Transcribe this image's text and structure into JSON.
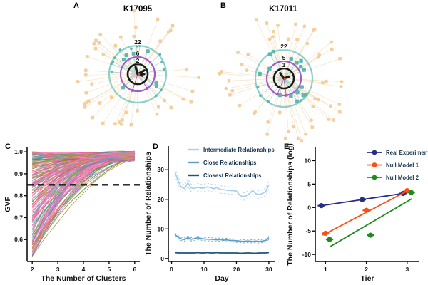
{
  "figure": {
    "background": "#ffffff"
  },
  "colors": {
    "axis": "#000000",
    "legend_text": "#14324F",
    "ref_line": "#141414",
    "network": {
      "outer_node": "#F2CF9D",
      "outer_edge": "#F6DFBC",
      "teal_node": "#5FB8B0",
      "teal_edge": "#9AD5CE",
      "purple_node": "#A35BC5",
      "gray_spoke": "#CDCDCD",
      "black_spoke": "#1A1A1A",
      "center_dot": "#E8502A"
    }
  },
  "panels": {
    "A": {
      "label": "A",
      "title": "K17095",
      "rings": [
        {
          "label": "22",
          "radius": 40,
          "color": "#8BD0C8"
        },
        {
          "label": "6",
          "radius": 24,
          "color": "#A35BC5"
        },
        {
          "label": "2",
          "radius": 14,
          "color": "#1A1A1A"
        }
      ],
      "network": {
        "seed": 11,
        "outer": {
          "count": 46,
          "shape": "square",
          "rmin": 47,
          "rmax": 90
        },
        "teal": [
          {
            "count": 13,
            "shape": "circle",
            "rmin": 36,
            "rmax": 42,
            "size": 2.3
          },
          {
            "count": 7,
            "shape": "square",
            "rmin": 26,
            "rmax": 36,
            "size": 3.8
          }
        ],
        "purple_count": 2,
        "gray_spokes": 6,
        "black_spokes": 4
      }
    },
    "B": {
      "label": "B",
      "title": "K17011",
      "rings": [
        {
          "label": "22",
          "radius": 40,
          "color": "#8BD0C8"
        },
        {
          "label": "5",
          "radius": 24,
          "color": "#A35BC5"
        },
        {
          "label": "1",
          "radius": 14,
          "color": "#1A1A1A"
        }
      ],
      "network": {
        "seed": 23,
        "outer": {
          "count": 54,
          "shape": "mix",
          "rmin": 47,
          "rmax": 92
        },
        "teal": [
          {
            "count": 16,
            "shape": "square",
            "rmin": 24,
            "rmax": 41,
            "size": 4.2
          },
          {
            "count": 4,
            "shape": "circle",
            "rmin": 37,
            "rmax": 42,
            "size": 2.3
          }
        ],
        "purple_count": 2,
        "gray_spokes": 6,
        "black_spokes": 3
      }
    },
    "C": {
      "label": "C"
    },
    "D": {
      "label": "D"
    },
    "E": {
      "label": "E"
    }
  },
  "chart_data": [
    {
      "id": "C",
      "type": "line",
      "title": "",
      "xlabel": "The Number of Clusters",
      "ylabel": "GVF",
      "xlim": [
        1.8,
        6.2
      ],
      "ylim": [
        0.5,
        1.02
      ],
      "x_ticks": [
        2,
        3,
        4,
        5,
        6
      ],
      "y_ticks": [
        0.6,
        0.7,
        0.8,
        0.9,
        1.0
      ],
      "grid": false,
      "reference_line": {
        "y": 0.85,
        "style": "dashed",
        "color": "#141414",
        "width": 2.3
      },
      "ensemble": {
        "description": "~200 GVF curves (one per unit) rising from values 0.53-0.99 at 2 clusters and converging to 0.96-1.0 at 6 clusters",
        "n_lines": 210,
        "x": [
          2,
          3,
          4,
          5,
          6
        ],
        "start_range": [
          0.52,
          0.99
        ],
        "end_range": [
          0.96,
          1.0
        ],
        "seed": 42,
        "pink_weight": 0.5,
        "palette": [
          "#F06EB1",
          "#E85A9F",
          "#F78FC0",
          "#4DAF4A",
          "#7FBF4D",
          "#1B9E77",
          "#66A5D8",
          "#7570B3",
          "#9C6BC9",
          "#B8912C",
          "#A6761D",
          "#D9822B",
          "#999999",
          "#5AB4AC",
          "#C2559F"
        ]
      }
    },
    {
      "id": "D",
      "type": "line",
      "title": "",
      "xlabel": "Day",
      "ylabel": "The Number of Relationships",
      "xlim": [
        -1,
        32
      ],
      "ylim": [
        -1,
        38
      ],
      "x_ticks": [
        0,
        10,
        20,
        30
      ],
      "y_ticks": [
        0,
        10,
        20,
        30
      ],
      "grid": false,
      "legend_position": "top-inside",
      "x": [
        1,
        2,
        3,
        4,
        5,
        6,
        7,
        8,
        9,
        10,
        11,
        12,
        13,
        14,
        15,
        16,
        17,
        18,
        19,
        20,
        21,
        22,
        23,
        24,
        25,
        26,
        27,
        28,
        29,
        30
      ],
      "series": [
        {
          "name": "Closest Relationships",
          "color": "#1F5377",
          "band": 0.15,
          "values": [
            2.0,
            1.9,
            1.9,
            1.9,
            1.9,
            1.9,
            1.9,
            2.0,
            1.9,
            1.9,
            2.0,
            1.9,
            1.9,
            2.0,
            1.9,
            1.9,
            1.9,
            1.9,
            1.9,
            1.9,
            1.8,
            1.8,
            1.9,
            1.9,
            1.8,
            1.8,
            1.9,
            1.9,
            1.9,
            2.0
          ]
        },
        {
          "name": "Close Relationships",
          "color": "#5B9EC9",
          "band": 0.55,
          "values": [
            8.1,
            7.2,
            6.6,
            6.4,
            7.1,
            6.5,
            6.7,
            7.0,
            6.8,
            6.6,
            6.5,
            6.5,
            6.4,
            6.3,
            6.4,
            6.2,
            6.3,
            6.1,
            6.1,
            6.0,
            5.9,
            5.8,
            5.9,
            5.9,
            5.8,
            5.9,
            5.8,
            5.9,
            6.1,
            7.0
          ]
        },
        {
          "name": "Intermediate Relationships",
          "color": "#A9CFE5",
          "band": 1.25,
          "values": [
            29.3,
            26.3,
            24.1,
            23.6,
            25.6,
            23.9,
            23.7,
            24.1,
            23.8,
            23.9,
            24.2,
            24.0,
            23.6,
            24.0,
            23.3,
            23.3,
            23.1,
            23.0,
            22.9,
            22.8,
            21.4,
            20.9,
            21.2,
            21.9,
            23.0,
            21.9,
            21.6,
            22.0,
            22.6,
            24.9
          ]
        }
      ]
    },
    {
      "id": "E",
      "type": "scatter",
      "title": "",
      "xlabel": "Tier",
      "ylabel": "The Number of Relationships (log)",
      "xlim": [
        0.75,
        3.3
      ],
      "ylim": [
        -11.5,
        12.8
      ],
      "x_ticks": [
        1,
        2,
        3
      ],
      "y_ticks": [
        -10,
        -5,
        0,
        5,
        10
      ],
      "grid": false,
      "legend_position": "top-right-inside",
      "series": [
        {
          "name": "Real Experiment",
          "color": "#252E87",
          "x": [
            0.9,
            1.9,
            2.9
          ],
          "y": [
            0.4,
            1.7,
            3.0
          ],
          "xerr": 0.09,
          "line": {
            "type": "connect"
          }
        },
        {
          "name": "Null Model 1",
          "color": "#FC4E12",
          "x": [
            1.0,
            2.0,
            3.0
          ],
          "y": [
            -5.5,
            -0.6,
            3.6
          ],
          "xerr": 0.09,
          "line": {
            "type": "fit",
            "x1": 0.93,
            "y1": -5.9,
            "x2": 3.05,
            "y2": 3.75
          }
        },
        {
          "name": "Null Model 2",
          "color": "#1F8B1F",
          "x": [
            1.1,
            2.1,
            3.1
          ],
          "y": [
            -6.8,
            -5.9,
            3.2
          ],
          "xerr": 0.09,
          "line": {
            "type": "fit",
            "x1": 1.12,
            "y1": -8.3,
            "x2": 3.12,
            "y2": 1.9
          }
        }
      ]
    }
  ]
}
